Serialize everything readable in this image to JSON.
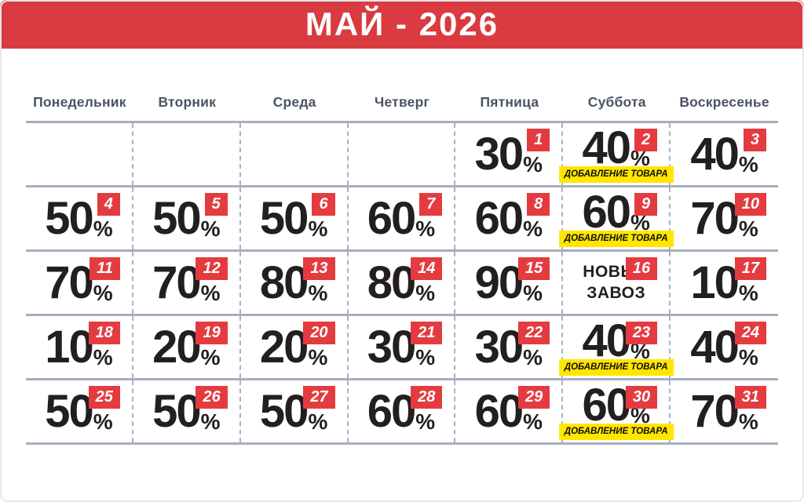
{
  "header": {
    "title": "МАЙ - 2026"
  },
  "weekdays": [
    "Понедельник",
    "Вторник",
    "Среда",
    "Четверг",
    "Пятница",
    "Суббота",
    "Воскресенье"
  ],
  "labels": {
    "restock_note": "ДОБАВЛЕНИЕ ТОВАРА",
    "new_arrival": "НОВЫЙ ЗАВОЗ"
  },
  "percent_symbol": "%",
  "colors": {
    "header_red": "#d93b40",
    "badge_red": "#e43b40",
    "note_yellow": "#ffe600",
    "weekday_text": "#4a5364",
    "grid_line": "#a8aec0",
    "discount_text": "#231f20"
  },
  "calendar": {
    "weeks": [
      [
        null,
        null,
        null,
        null,
        {
          "day": 1,
          "discount": "30"
        },
        {
          "day": 2,
          "discount": "40",
          "note": true
        },
        {
          "day": 3,
          "discount": "40"
        }
      ],
      [
        {
          "day": 4,
          "discount": "50"
        },
        {
          "day": 5,
          "discount": "50"
        },
        {
          "day": 6,
          "discount": "50"
        },
        {
          "day": 7,
          "discount": "60"
        },
        {
          "day": 8,
          "discount": "60"
        },
        {
          "day": 9,
          "discount": "60",
          "note": true
        },
        {
          "day": 10,
          "discount": "70"
        }
      ],
      [
        {
          "day": 11,
          "discount": "70"
        },
        {
          "day": 12,
          "discount": "70"
        },
        {
          "day": 13,
          "discount": "80"
        },
        {
          "day": 14,
          "discount": "80"
        },
        {
          "day": 15,
          "discount": "90"
        },
        {
          "day": 16,
          "special": true
        },
        {
          "day": 17,
          "discount": "10"
        }
      ],
      [
        {
          "day": 18,
          "discount": "10"
        },
        {
          "day": 19,
          "discount": "20"
        },
        {
          "day": 20,
          "discount": "20"
        },
        {
          "day": 21,
          "discount": "30"
        },
        {
          "day": 22,
          "discount": "30"
        },
        {
          "day": 23,
          "discount": "40",
          "note": true
        },
        {
          "day": 24,
          "discount": "40"
        }
      ],
      [
        {
          "day": 25,
          "discount": "50"
        },
        {
          "day": 26,
          "discount": "50"
        },
        {
          "day": 27,
          "discount": "50"
        },
        {
          "day": 28,
          "discount": "60"
        },
        {
          "day": 29,
          "discount": "60"
        },
        {
          "day": 30,
          "discount": "60",
          "note": true
        },
        {
          "day": 31,
          "discount": "70"
        }
      ]
    ]
  }
}
